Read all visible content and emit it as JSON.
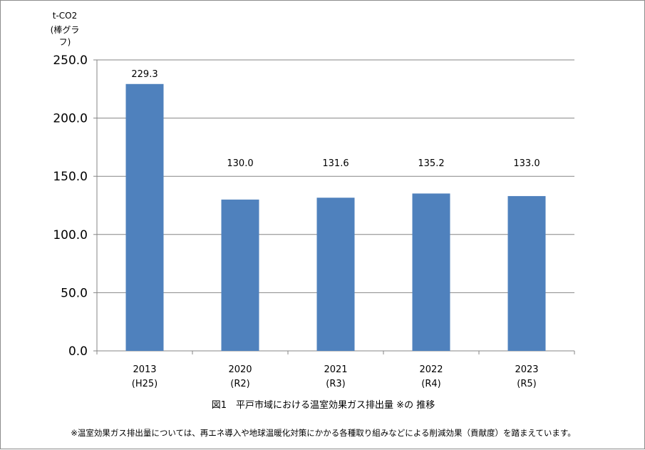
{
  "chart_data": {
    "type": "bar",
    "unit_label_line1": "t-CO2",
    "unit_label_line2": "(棒グラフ)",
    "categories": [
      "2013",
      "2020",
      "2021",
      "2022",
      "2023"
    ],
    "category_sublabels": [
      "(H25)",
      "(R2)",
      "(R3)",
      "(R4)",
      "(R5)"
    ],
    "values": [
      229.3,
      130.0,
      131.6,
      135.2,
      133.0
    ],
    "data_labels": [
      "229.3",
      "130.0",
      "131.6",
      "135.2",
      "133.0"
    ],
    "ylim": [
      0,
      250
    ],
    "yticks": [
      "0.0",
      "50.0",
      "100.0",
      "150.0",
      "200.0",
      "250.0"
    ],
    "grid": true,
    "bar_color": "#4f81bd",
    "grid_color": "#868686"
  },
  "caption": "図1　平戸市域における温室効果ガス排出量 ※の 推移",
  "footnote": "※温室効果ガス排出量については、再エネ導入や地球温暖化対策にかかる各種取り組みなどによる削減効果（貢献度）を踏まえています。"
}
